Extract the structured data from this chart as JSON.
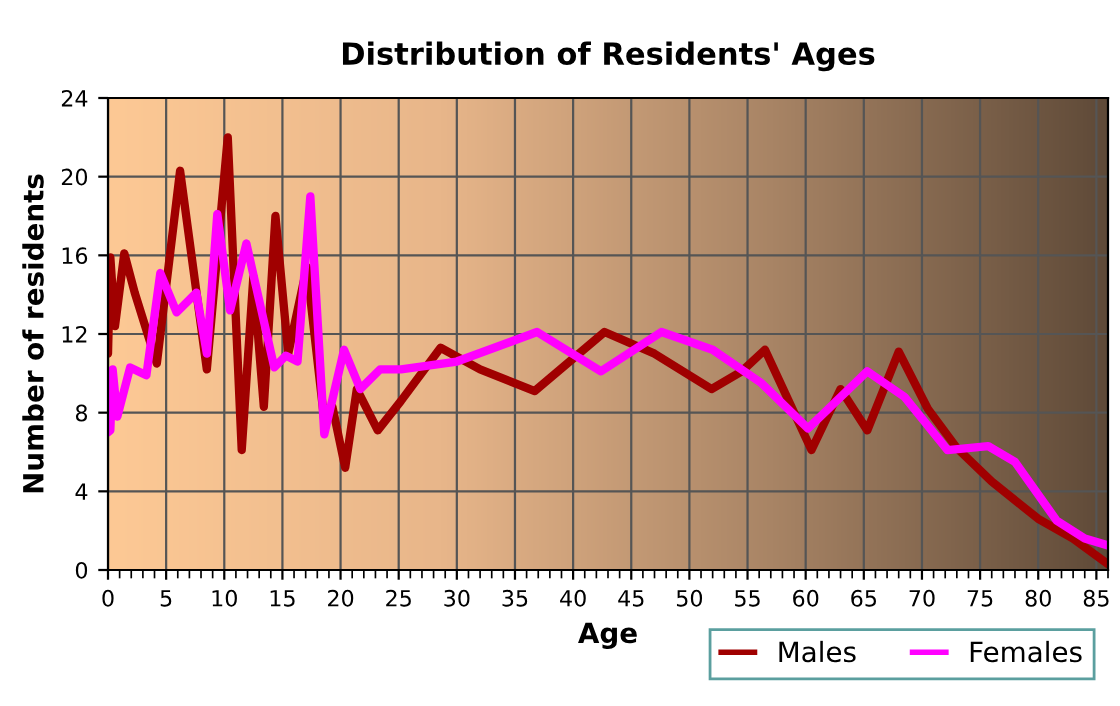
{
  "chart_data": {
    "type": "line",
    "title": "Distribution of Residents' Ages",
    "xlabel": "Age",
    "ylabel": "Number of residents",
    "xlim": [
      0,
      86
    ],
    "xticks": [
      0,
      5,
      10,
      15,
      20,
      25,
      30,
      35,
      40,
      45,
      50,
      55,
      60,
      65,
      70,
      75,
      80,
      85
    ],
    "ylim": [
      0,
      24
    ],
    "yticks": [
      0,
      4,
      8,
      12,
      16,
      20,
      24
    ],
    "grid": true,
    "legend": "bottom right",
    "line_style": "solid",
    "marker": "none",
    "series": [
      {
        "name": "Males",
        "color": "#a00000",
        "x": [
          0,
          0.2,
          0.6,
          1.4,
          2.3,
          4.2,
          6.2,
          8.5,
          10.3,
          11.5,
          12.5,
          13.4,
          14.4,
          15.5,
          17.1,
          18.6,
          19.3,
          20.4,
          21.4,
          23.2,
          25.2,
          28.6,
          32,
          36.7,
          42.7,
          47,
          51.9,
          54.5,
          56.5,
          60.5,
          63,
          65.3,
          68,
          70.5,
          73,
          76,
          80,
          83,
          86
        ],
        "values": [
          11.0,
          15.9,
          12.4,
          16.1,
          14.1,
          10.5,
          20.3,
          10.2,
          22.0,
          6.1,
          14.9,
          8.3,
          18.0,
          11.0,
          15.4,
          7.6,
          8.3,
          5.2,
          9.2,
          7.1,
          8.6,
          11.3,
          10.2,
          9.1,
          12.1,
          11.0,
          9.2,
          10.1,
          11.2,
          6.1,
          9.2,
          7.1,
          11.1,
          8.2,
          6.2,
          4.5,
          2.6,
          1.6,
          0.3
        ]
      },
      {
        "name": "Females",
        "color": "#ff00ff",
        "x": [
          0,
          0.2,
          0.4,
          0.8,
          1.9,
          3.3,
          4.5,
          5.9,
          7.6,
          8.5,
          9.4,
          10.5,
          11.9,
          14.3,
          15.3,
          16.3,
          17.4,
          18.6,
          20.3,
          21.7,
          23.4,
          25.2,
          30,
          36.9,
          42.4,
          47.6,
          52,
          56.2,
          60.2,
          65.3,
          68.5,
          72.2,
          75.7,
          78,
          81.6,
          84,
          86
        ],
        "values": [
          7.0,
          7.1,
          10.2,
          7.8,
          10.3,
          9.9,
          15.1,
          13.1,
          14.1,
          11.0,
          18.1,
          13.2,
          16.6,
          10.3,
          10.9,
          10.6,
          19.0,
          6.9,
          11.2,
          9.2,
          10.2,
          10.2,
          10.6,
          12.1,
          10.1,
          12.1,
          11.2,
          9.5,
          7.2,
          10.1,
          8.8,
          6.1,
          6.3,
          5.5,
          2.5,
          1.6,
          1.25
        ]
      }
    ]
  }
}
